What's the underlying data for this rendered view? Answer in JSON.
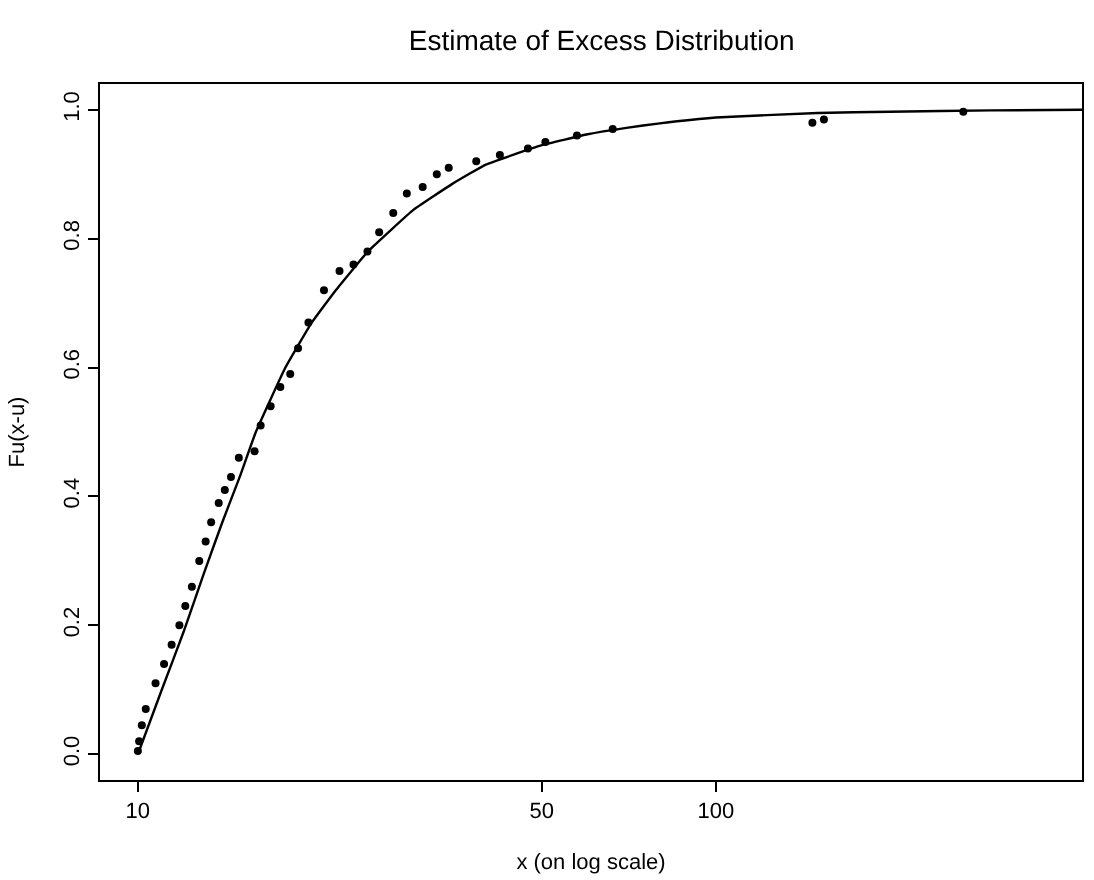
{
  "chart_data": {
    "type": "scatter",
    "title": "Estimate of Excess Distribution",
    "xlabel": "x (on log scale)",
    "ylabel": "Fu(x-u)",
    "log": "x",
    "xlim": [
      8.6,
      430
    ],
    "xticks": [
      10,
      50,
      100
    ],
    "ylim": [
      -0.04,
      1.04
    ],
    "yticks": [
      {
        "value": 0,
        "label": "0.0"
      },
      {
        "value": 0.2,
        "label": "0.2"
      },
      {
        "value": 0.4,
        "label": "0.4"
      },
      {
        "value": 0.6,
        "label": "0.6"
      },
      {
        "value": 0.8,
        "label": "0.8"
      },
      {
        "value": 1,
        "label": "1.0"
      }
    ],
    "marker": "circle",
    "series": [
      {
        "color": "#000000",
        "x": [
          10.0,
          10.05,
          10.16,
          10.32,
          10.73,
          11.1,
          11.44,
          11.8,
          12.08,
          12.4,
          12.77,
          13.1,
          13.39,
          13.8,
          14.14,
          14.49,
          14.95,
          15.92,
          16.31,
          16.97,
          17.64,
          18.35,
          18.93,
          19.73,
          20.99,
          22.33,
          23.61,
          24.96,
          26.15,
          27.66,
          29.2,
          31.1,
          32.9,
          34.5,
          38.5,
          42.3,
          47.3,
          50.7,
          57.5,
          66.3,
          146.9,
          153.8,
          268
        ],
        "values": [
          0.005,
          0.02,
          0.045,
          0.07,
          0.11,
          0.14,
          0.17,
          0.2,
          0.23,
          0.26,
          0.3,
          0.33,
          0.36,
          0.39,
          0.41,
          0.43,
          0.46,
          0.47,
          0.51,
          0.54,
          0.57,
          0.59,
          0.63,
          0.67,
          0.72,
          0.75,
          0.76,
          0.78,
          0.81,
          0.84,
          0.87,
          0.88,
          0.9,
          0.91,
          0.92,
          0.93,
          0.94,
          0.95,
          0.96,
          0.97,
          0.98,
          0.985,
          0.997
        ]
      },
      {
        "type": "line",
        "color": "#000000",
        "marker": "none",
        "x": [
          10,
          11,
          12,
          13,
          14,
          15,
          16,
          18,
          20,
          22,
          25,
          30,
          35,
          40,
          50,
          60,
          70,
          80,
          100,
          150,
          200,
          300,
          430
        ],
        "values": [
          0,
          0.1,
          0.19,
          0.28,
          0.36,
          0.43,
          0.5,
          0.6,
          0.67,
          0.72,
          0.78,
          0.845,
          0.885,
          0.915,
          0.945,
          0.962,
          0.972,
          0.979,
          0.988,
          0.995,
          0.997,
          0.999,
          1.0
        ]
      }
    ]
  }
}
